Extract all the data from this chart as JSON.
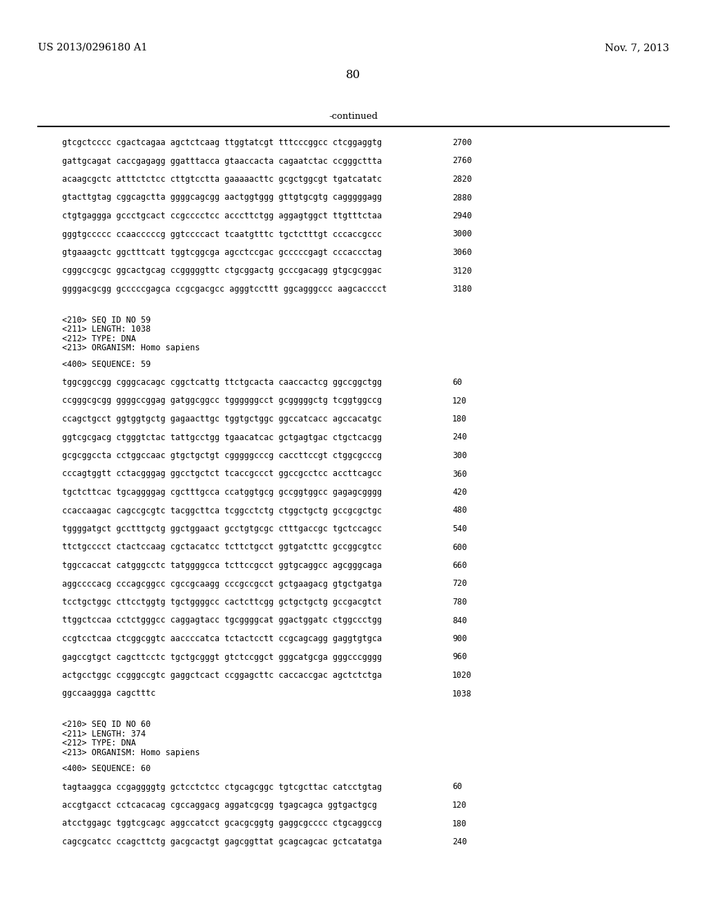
{
  "bg_color": "#ffffff",
  "header_left": "US 2013/0296180 A1",
  "header_right": "Nov. 7, 2013",
  "page_number": "80",
  "continued_label": "-continued",
  "line_color": "#000000",
  "font_color": "#000000",
  "mono_font": "DejaVu Sans Mono",
  "serif_font": "DejaVu Serif",
  "sequence_lines_top": [
    [
      "gtcgctcccc cgactcagaa agctctcaag ttggtatcgt tttcccggcc ctcggaggtg",
      "2700"
    ],
    [
      "gattgcagat caccgagagg ggatttacca gtaaccacta cagaatctac ccgggcttta",
      "2760"
    ],
    [
      "acaagcgctc atttctctcc cttgtcctta gaaaaacttc gcgctggcgt tgatcatatc",
      "2820"
    ],
    [
      "gtacttgtag cggcagctta ggggcagcgg aactggtggg gttgtgcgtg cagggggagg",
      "2880"
    ],
    [
      "ctgtgaggga gccctgcact ccgcccctcc acccttctgg aggagtggct ttgtttctaa",
      "2940"
    ],
    [
      "gggtgccccc ccaacccccg ggtccccact tcaatgtttc tgctctttgt cccaccgccc",
      "3000"
    ],
    [
      "gtgaaagctc ggctttcatt tggtcggcga agcctccgac gcccccgagt cccaccctag",
      "3060"
    ],
    [
      "cgggccgcgc ggcactgcag ccgggggttc ctgcggactg gcccgacagg gtgcgcggac",
      "3120"
    ],
    [
      "ggggacgcgg gcccccgagca ccgcgacgcc agggtccttt ggcagggccc aagcacccct",
      "3180"
    ]
  ],
  "seq59_header": [
    "<210> SEQ ID NO 59",
    "<211> LENGTH: 1038",
    "<212> TYPE: DNA",
    "<213> ORGANISM: Homo sapiens"
  ],
  "seq59_label": "<400> SEQUENCE: 59",
  "seq59_lines": [
    [
      "tggcggccgg cgggcacagc cggctcattg ttctgcacta caaccactcg ggccggctgg",
      "60"
    ],
    [
      "ccgggcgcgg ggggccggag gatggcggcc tggggggcct gcgggggctg tcggtggccg",
      "120"
    ],
    [
      "ccagctgcct ggtggtgctg gagaacttgc tggtgctggc ggccatcacc agccacatgc",
      "180"
    ],
    [
      "ggtcgcgacg ctgggtctac tattgcctgg tgaacatcac gctgagtgac ctgctcacgg",
      "240"
    ],
    [
      "gcgcggccta cctggccaac gtgctgctgt cgggggcccg caccttccgt ctggcgcccg",
      "300"
    ],
    [
      "cccagtggtt cctacgggag ggcctgctct tcaccgccct ggccgcctcc accttcagcc",
      "360"
    ],
    [
      "tgctcttcac tgcaggggag cgctttgcca ccatggtgcg gccggtggcc gagagcgggg",
      "420"
    ],
    [
      "ccaccaagac cagccgcgtc tacggcttca tcggcctctg ctggctgctg gccgcgctgc",
      "480"
    ],
    [
      "tggggatgct gcctttgctg ggctggaact gcctgtgcgc ctttgaccgc tgctccagcc",
      "540"
    ],
    [
      "ttctgcccct ctactccaag cgctacatcc tcttctgcct ggtgatcttc gccggcgtcc",
      "600"
    ],
    [
      "tggccaccat catgggcctc tatggggcca tcttccgcct ggtgcaggcc agcgggcaga",
      "660"
    ],
    [
      "aggccccacg cccagcggcc cgccgcaagg cccgccgcct gctgaagacg gtgctgatga",
      "720"
    ],
    [
      "tcctgctggc cttcctggtg tgctggggcc cactcttcgg gctgctgctg gccgacgtct",
      "780"
    ],
    [
      "ttggctccaa cctctgggcc caggagtacc tgcggggcat ggactggatc ctggccctgg",
      "840"
    ],
    [
      "ccgtcctcaa ctcggcggtc aaccccatca tctactcctt ccgcagcagg gaggtgtgca",
      "900"
    ],
    [
      "gagccgtgct cagcttcctc tgctgcgggt gtctccggct gggcatgcga gggcccgggg",
      "960"
    ],
    [
      "actgcctggc ccgggccgtc gaggctcact ccggagcttc caccaccgac agctctctga",
      "1020"
    ],
    [
      "ggccaaggga cagctttc",
      "1038"
    ]
  ],
  "seq60_header": [
    "<210> SEQ ID NO 60",
    "<211> LENGTH: 374",
    "<212> TYPE: DNA",
    "<213> ORGANISM: Homo sapiens"
  ],
  "seq60_label": "<400> SEQUENCE: 60",
  "seq60_lines": [
    [
      "tagtaaggca ccgaggggtg gctcctctcc ctgcagcggc tgtcgcttac catcctgtag",
      "60"
    ],
    [
      "accgtgacct cctcacacag cgccaggacg aggatcgcgg tgagcagca ggtgactgcg",
      "120"
    ],
    [
      "atcctggagc tggtcgcagc aggccatcct gcacgcggtg gaggcgcccc ctgcaggccg",
      "180"
    ],
    [
      "cagcgcatcc ccagcttctg gacgcactgt gagcggttat gcagcagcac gctcatatga",
      "240"
    ]
  ]
}
